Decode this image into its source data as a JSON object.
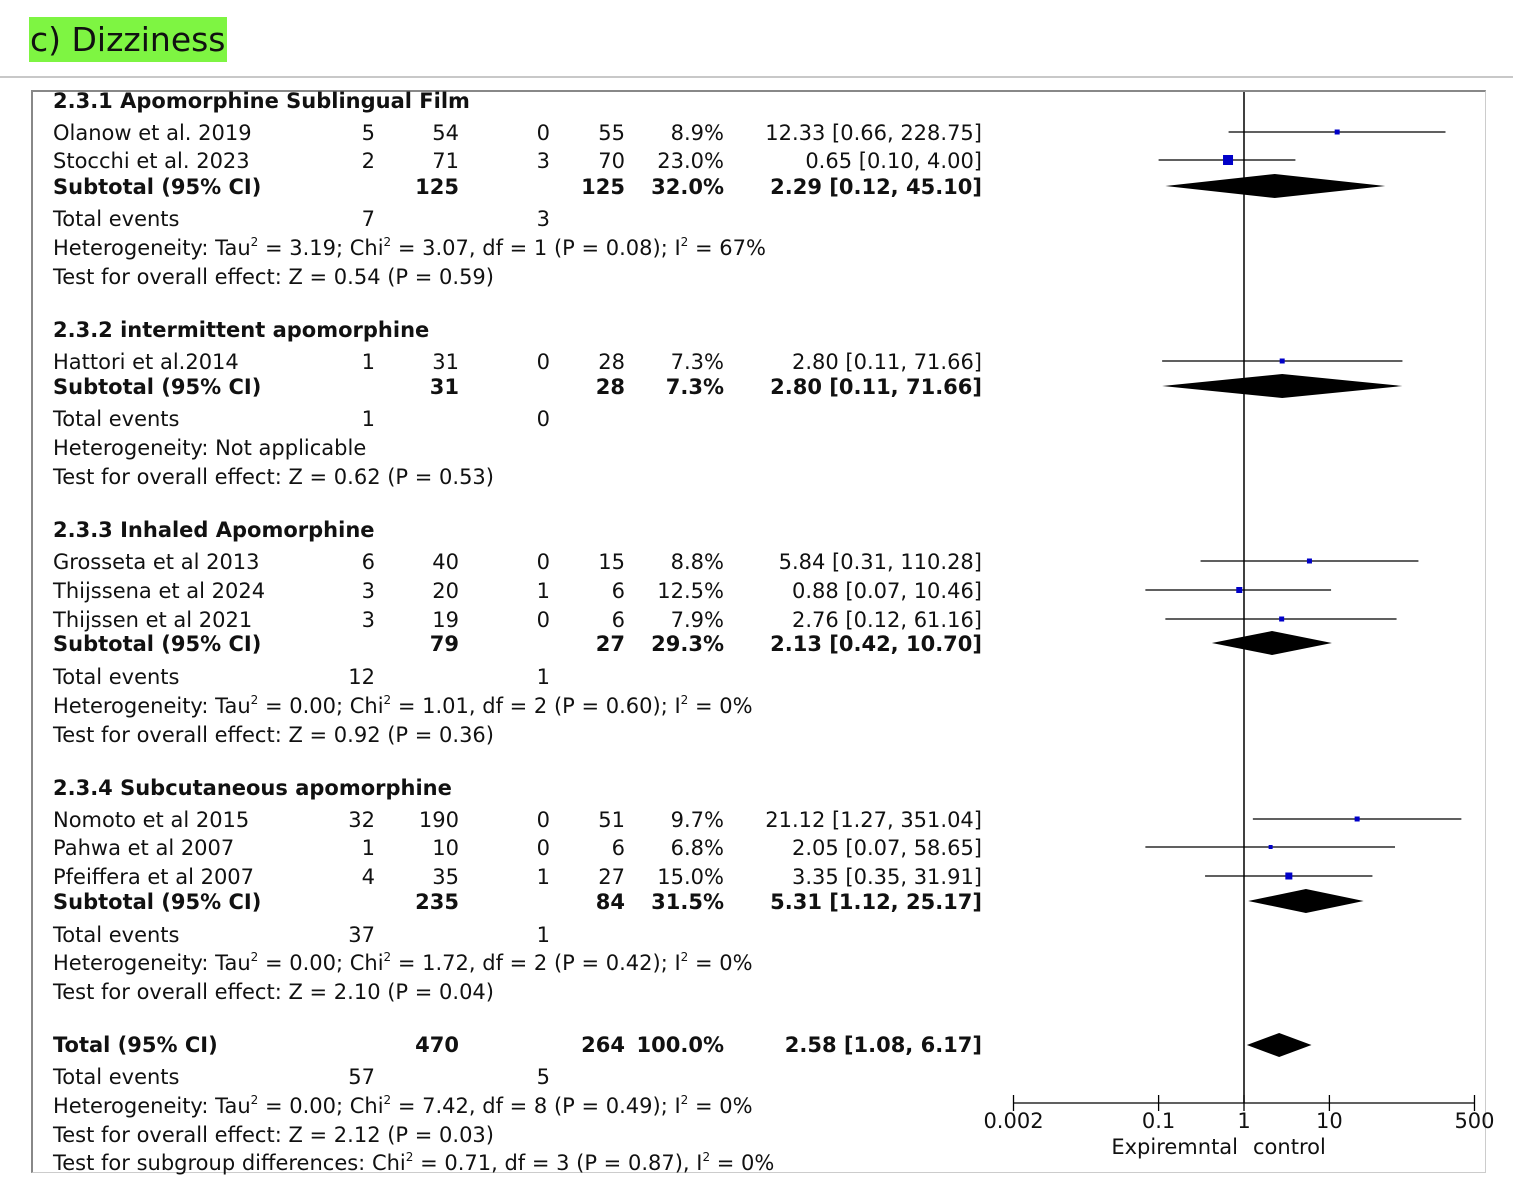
{
  "figure_label": "c) Dizziness",
  "chart_data": {
    "type": "forest",
    "axis": {
      "scale": "log",
      "ticks": [
        0.002,
        0.1,
        1,
        10,
        500
      ],
      "tick_labels": [
        "0.002",
        "0.1",
        "1",
        "10",
        "500"
      ],
      "xlabel_left": "Expiremntal",
      "xlabel_right": "control"
    },
    "subgroups": [
      {
        "title": "2.3.1 Apomorphine Sublingual Film",
        "studies": [
          {
            "name": "Olanow et al. 2019",
            "e1": "5",
            "n1": "54",
            "e2": "0",
            "n2": "55",
            "weight": "8.9%",
            "ci_text": "12.33 [0.66, 228.75]",
            "est": 12.33,
            "lo": 0.66,
            "hi": 228.75
          },
          {
            "name": "Stocchi et al. 2023",
            "e1": "2",
            "n1": "71",
            "e2": "3",
            "n2": "70",
            "weight": "23.0%",
            "ci_text": "0.65 [0.10, 4.00]",
            "est": 0.65,
            "lo": 0.1,
            "hi": 4.0
          }
        ],
        "subtotal": {
          "label": "Subtotal (95% CI)",
          "n1": "125",
          "n2": "125",
          "weight": "32.0%",
          "ci_text": "2.29 [0.12, 45.10]",
          "est": 2.29,
          "lo": 0.12,
          "hi": 45.1
        },
        "total_events": {
          "label": "Total events",
          "e1": "7",
          "e2": "3"
        },
        "heterogeneity": {
          "prefix": "Heterogeneity: ",
          "tau": "Tau",
          "tau_val": " = 3.19; ",
          "chi": "Chi",
          "chi_val": " = 3.07, df = 1 (P = 0.08); ",
          "i": "I",
          "i_val": " = 67%",
          "sup": "2"
        },
        "overall": "Test for overall effect: Z = 0.54 (P = 0.59)"
      },
      {
        "title": "2.3.2 intermittent apomorphine",
        "studies": [
          {
            "name": "Hattori et al.2014",
            "e1": "1",
            "n1": "31",
            "e2": "0",
            "n2": "28",
            "weight": "7.3%",
            "ci_text": "2.80 [0.11, 71.66]",
            "est": 2.8,
            "lo": 0.11,
            "hi": 71.66
          }
        ],
        "subtotal": {
          "label": "Subtotal (95% CI)",
          "n1": "31",
          "n2": "28",
          "weight": "7.3%",
          "ci_text": "2.80 [0.11, 71.66]",
          "est": 2.8,
          "lo": 0.11,
          "hi": 71.66
        },
        "total_events": {
          "label": "Total events",
          "e1": "1",
          "e2": "0"
        },
        "heterogeneity_text": "Heterogeneity: Not applicable",
        "overall": "Test for overall effect: Z = 0.62 (P = 0.53)"
      },
      {
        "title": "2.3.3 Inhaled Apomorphine",
        "studies": [
          {
            "name": "Grosseta et al 2013",
            "e1": "6",
            "n1": "40",
            "e2": "0",
            "n2": "15",
            "weight": "8.8%",
            "ci_text": "5.84 [0.31, 110.28]",
            "est": 5.84,
            "lo": 0.31,
            "hi": 110.28
          },
          {
            "name": "Thijssena et al 2024",
            "e1": "3",
            "n1": "20",
            "e2": "1",
            "n2": "6",
            "weight": "12.5%",
            "ci_text": "0.88 [0.07, 10.46]",
            "est": 0.88,
            "lo": 0.07,
            "hi": 10.46
          },
          {
            "name": "Thijssen et al 2021",
            "e1": "3",
            "n1": "19",
            "e2": "0",
            "n2": "6",
            "weight": "7.9%",
            "ci_text": "2.76 [0.12, 61.16]",
            "est": 2.76,
            "lo": 0.12,
            "hi": 61.16
          }
        ],
        "subtotal": {
          "label": "Subtotal (95% CI)",
          "n1": "79",
          "n2": "27",
          "weight": "29.3%",
          "ci_text": "2.13 [0.42, 10.70]",
          "est": 2.13,
          "lo": 0.42,
          "hi": 10.7
        },
        "total_events": {
          "label": "Total events",
          "e1": "12",
          "e2": "1"
        },
        "heterogeneity": {
          "prefix": "Heterogeneity: ",
          "tau": "Tau",
          "tau_val": " = 0.00; ",
          "chi": "Chi",
          "chi_val": " = 1.01, df = 2 (P = 0.60); ",
          "i": "I",
          "i_val": " = 0%",
          "sup": "2"
        },
        "overall": "Test for overall effect: Z = 0.92 (P = 0.36)"
      },
      {
        "title": "2.3.4 Subcutaneous apomorphine",
        "studies": [
          {
            "name": "Nomoto et al 2015",
            "e1": "32",
            "n1": "190",
            "e2": "0",
            "n2": "51",
            "weight": "9.7%",
            "ci_text": "21.12 [1.27, 351.04]",
            "est": 21.12,
            "lo": 1.27,
            "hi": 351.04
          },
          {
            "name": "Pahwa et al 2007",
            "e1": "1",
            "n1": "10",
            "e2": "0",
            "n2": "6",
            "weight": "6.8%",
            "ci_text": "2.05 [0.07, 58.65]",
            "est": 2.05,
            "lo": 0.07,
            "hi": 58.65
          },
          {
            "name": "Pfeiffera et al 2007",
            "e1": "4",
            "n1": "35",
            "e2": "1",
            "n2": "27",
            "weight": "15.0%",
            "ci_text": "3.35 [0.35, 31.91]",
            "est": 3.35,
            "lo": 0.35,
            "hi": 31.91
          }
        ],
        "subtotal": {
          "label": "Subtotal (95% CI)",
          "n1": "235",
          "n2": "84",
          "weight": "31.5%",
          "ci_text": "5.31 [1.12, 25.17]",
          "est": 5.31,
          "lo": 1.12,
          "hi": 25.17
        },
        "total_events": {
          "label": "Total events",
          "e1": "37",
          "e2": "1"
        },
        "heterogeneity": {
          "prefix": "Heterogeneity: ",
          "tau": "Tau",
          "tau_val": " = 0.00; ",
          "chi": "Chi",
          "chi_val": " = 1.72, df = 2 (P = 0.42); ",
          "i": "I",
          "i_val": " = 0%",
          "sup": "2"
        },
        "overall": "Test for overall effect: Z = 2.10 (P = 0.04)"
      }
    ],
    "total": {
      "label": "Total (95% CI)",
      "n1": "470",
      "n2": "264",
      "weight": "100.0%",
      "ci_text": "2.58 [1.08, 6.17]",
      "est": 2.58,
      "lo": 1.08,
      "hi": 6.17,
      "total_events": {
        "label": "Total events",
        "e1": "57",
        "e2": "5"
      },
      "heterogeneity": {
        "prefix": "Heterogeneity: ",
        "tau": "Tau",
        "tau_val": " = 0.00; ",
        "chi": "Chi",
        "chi_val": " = 7.42, df = 8 (P = 0.49); ",
        "i": "I",
        "i_val": " = 0%",
        "sup": "2"
      },
      "overall": "Test for overall effect: Z = 2.12 (P = 0.03)",
      "subgroup_diff": {
        "prefix": "Test for subgroup differences: ",
        "chi": "Chi",
        "chi_val": " = 0.71, df = 3 (P = 0.87), ",
        "i": "I",
        "i_val": " = 0%",
        "sup": "2"
      }
    },
    "colors": {
      "square": "#0000c8",
      "diamond": "#000000",
      "line": "#000000"
    }
  }
}
